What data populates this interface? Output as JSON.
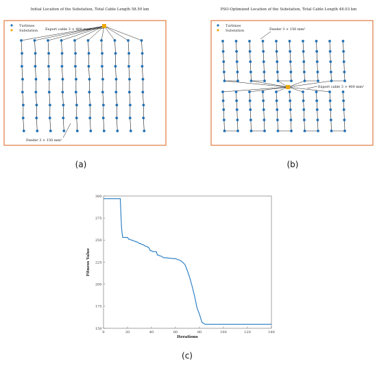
{
  "colors": {
    "frame": "#e07a3c",
    "turbine": "#1f6fb4",
    "substation": "#f0a810",
    "cable": "#1a1a1a",
    "curve": "#1f77c0"
  },
  "panel_labels": [
    "(a)",
    "(b)",
    "(c)"
  ],
  "chart_data": [
    {
      "type": "scatter",
      "title": "Initial Location of the Substation, Total Cable Length 58.50 km",
      "legend": {
        "position": "top-left",
        "entries": [
          "Turbines",
          "Substation"
        ]
      },
      "annotations": {
        "export_cable": "Export cable 3 × 400 mm²",
        "feeder": "Feeder 3 × 150 mm²"
      },
      "layout_type": "strings",
      "columns": 10,
      "rows": 8,
      "substation": {
        "x": 10.5,
        "y": 10.3
      },
      "grid": false
    },
    {
      "type": "scatter",
      "title": "PSO-Optimized Location of the Substation, Total Cable Length 48.03 km",
      "legend": {
        "position": "top-left",
        "entries": [
          "Turbines",
          "Substation"
        ]
      },
      "annotations": {
        "feeder": "Feeder 3 × 150 mm²",
        "export_cable": "Export cable 3 × 400 mm²"
      },
      "layout_type": "loops",
      "columns": 10,
      "rows": 8,
      "substation": {
        "x": 5.5,
        "y": 5
      },
      "grid": false
    },
    {
      "type": "line",
      "title": "",
      "xlabel": "Iterations",
      "ylabel": "Fitness Value",
      "xlim": [
        0,
        140
      ],
      "ylim": [
        150,
        300
      ],
      "xticks": [
        0,
        20,
        40,
        60,
        80,
        100,
        120,
        140
      ],
      "yticks": [
        150,
        175,
        200,
        225,
        250,
        275,
        300
      ],
      "grid": false,
      "series": [
        {
          "x": [
            0,
            14,
            14.5,
            15,
            15.5,
            16,
            17,
            20,
            21,
            22,
            23,
            24,
            25,
            26,
            27,
            28,
            29,
            30,
            31,
            32,
            33,
            34,
            35,
            36,
            37,
            38,
            39,
            40,
            41,
            42,
            43,
            44,
            45,
            46,
            47,
            48,
            50,
            52,
            55,
            58,
            60,
            62,
            64,
            66,
            68,
            70,
            72,
            74,
            76,
            78,
            80,
            82,
            84,
            85,
            86,
            140
          ],
          "y": [
            297,
            297,
            280,
            265,
            258,
            253,
            253,
            253,
            251,
            251,
            250,
            250,
            249,
            249,
            248,
            248,
            247,
            246,
            246,
            245,
            245,
            244,
            243,
            243,
            242,
            241,
            238,
            238,
            237,
            237,
            237,
            237,
            233,
            233,
            232,
            232,
            230,
            230,
            229.5,
            229,
            229,
            228,
            227,
            225,
            222,
            215,
            207,
            197,
            186,
            173,
            166,
            157,
            155,
            154.5,
            154.5,
            154.5
          ]
        }
      ]
    }
  ]
}
